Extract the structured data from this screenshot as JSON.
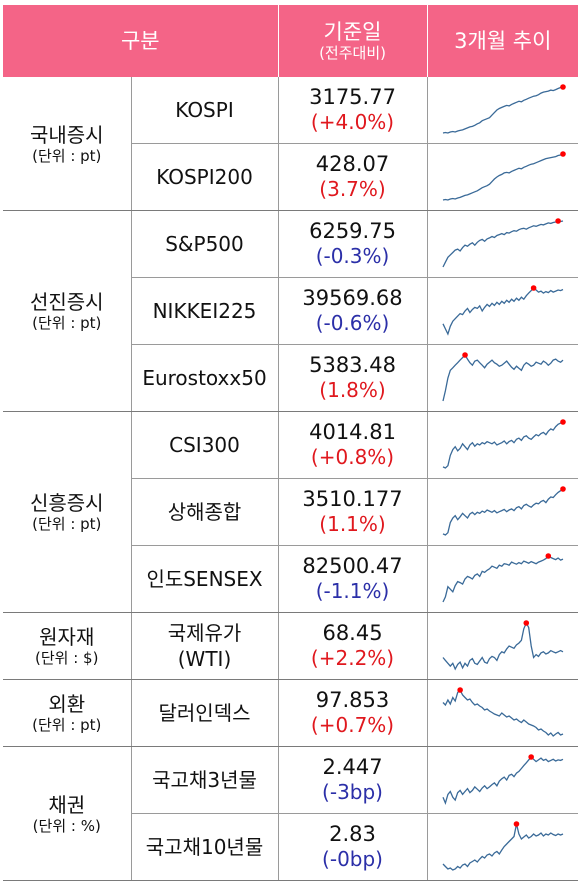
{
  "header": {
    "col_category": "구분",
    "col_base_main": "기준일",
    "col_base_sub": "(전주대비)",
    "col_trend": "3개월 추이"
  },
  "colors": {
    "up": "#e0181e",
    "down": "#2b2fa8",
    "header_bg": "#f46487",
    "spark_line": "#3a6a98",
    "spark_marker": "#ff0000"
  },
  "groups": [
    {
      "category": "국내증시",
      "unit": "(단위 : pt)",
      "rows": [
        {
          "name": "KOSPI",
          "value": "3175.77",
          "change": "(+4.0%)",
          "dir": "up"
        },
        {
          "name": "KOSPI200",
          "value": "428.07",
          "change": "(3.7%)",
          "dir": "up"
        }
      ]
    },
    {
      "category": "선진증시",
      "unit": "(단위 : pt)",
      "rows": [
        {
          "name": "S&P500",
          "value": "6259.75",
          "change": "(-0.3%)",
          "dir": "down"
        },
        {
          "name": "NIKKEI225",
          "value": "39569.68",
          "change": "(-0.6%)",
          "dir": "down"
        },
        {
          "name": "Eurostoxx50",
          "value": "5383.48",
          "change": "(1.8%)",
          "dir": "up"
        }
      ]
    },
    {
      "category": "신흥증시",
      "unit": "(단위 : pt)",
      "rows": [
        {
          "name": "CSI300",
          "value": "4014.81",
          "change": "(+0.8%)",
          "dir": "up"
        },
        {
          "name": "상해종합",
          "value": "3510.177",
          "change": "(1.1%)",
          "dir": "up"
        },
        {
          "name": "인도SENSEX",
          "value": "82500.47",
          "change": "(-1.1%)",
          "dir": "down"
        }
      ]
    },
    {
      "category": "원자재",
      "unit": "(단위 : $)",
      "rows": [
        {
          "name": "국제유가\n(WTI)",
          "value": "68.45",
          "change": "(+2.2%)",
          "dir": "up"
        }
      ]
    },
    {
      "category": "외환",
      "unit": "(단위 : pt)",
      "rows": [
        {
          "name": "달러인덱스",
          "value": "97.853",
          "change": "(+0.7%)",
          "dir": "up"
        }
      ]
    },
    {
      "category": "채권",
      "unit": "(단위 : %)",
      "rows": [
        {
          "name": "국고채3년물",
          "value": "2.447",
          "change": "(-3bp)",
          "dir": "down"
        },
        {
          "name": "국고채10년물",
          "value": "2.83",
          "change": "(-0bp)",
          "dir": "down"
        }
      ]
    }
  ],
  "sparklines": [
    {
      "id": "kospi",
      "values": [
        10,
        11,
        10,
        12,
        13,
        12,
        14,
        15,
        16,
        18,
        20,
        22,
        23,
        25,
        28,
        30,
        34,
        36,
        38,
        40,
        45,
        50,
        55,
        58,
        60,
        62,
        64,
        63,
        66,
        68,
        70,
        72,
        71,
        74,
        76,
        78,
        80,
        82,
        83,
        85,
        88,
        90,
        91,
        92,
        94,
        93,
        95,
        97,
        99,
        100
      ],
      "marker": "last"
    },
    {
      "id": "kospi200",
      "values": [
        10,
        11,
        10,
        12,
        13,
        12,
        14,
        15,
        17,
        19,
        20,
        22,
        24,
        26,
        28,
        31,
        34,
        36,
        38,
        41,
        46,
        51,
        55,
        58,
        60,
        63,
        64,
        63,
        66,
        68,
        70,
        72,
        71,
        74,
        76,
        78,
        80,
        81,
        83,
        85,
        87,
        89,
        91,
        92,
        93,
        94,
        95,
        97,
        98,
        100
      ],
      "marker": "last"
    },
    {
      "id": "sp500",
      "values": [
        5,
        15,
        25,
        30,
        35,
        40,
        42,
        38,
        45,
        50,
        48,
        52,
        55,
        50,
        56,
        60,
        62,
        58,
        63,
        65,
        68,
        66,
        70,
        72,
        74,
        72,
        76,
        75,
        78,
        80,
        79,
        82,
        84,
        85,
        83,
        86,
        88,
        90,
        89,
        91,
        93,
        92,
        94,
        96,
        95,
        97,
        98,
        100,
        99,
        100
      ],
      "marker": "max"
    },
    {
      "id": "nikkei",
      "values": [
        30,
        20,
        10,
        25,
        35,
        40,
        45,
        50,
        48,
        55,
        60,
        52,
        58,
        62,
        60,
        65,
        55,
        62,
        68,
        64,
        70,
        66,
        72,
        68,
        74,
        70,
        76,
        72,
        78,
        74,
        80,
        76,
        82,
        78,
        85,
        90,
        95,
        100,
        96,
        92,
        94,
        90,
        93,
        91,
        95,
        92,
        94,
        96,
        95,
        97
      ],
      "marker": "max"
    },
    {
      "id": "eurostoxx",
      "values": [
        10,
        30,
        55,
        70,
        75,
        80,
        85,
        90,
        95,
        100,
        92,
        85,
        80,
        88,
        90,
        85,
        80,
        75,
        82,
        86,
        90,
        85,
        82,
        78,
        80,
        84,
        88,
        82,
        76,
        72,
        78,
        74,
        70,
        80,
        85,
        82,
        78,
        80,
        86,
        84,
        82,
        88,
        85,
        80,
        84,
        90,
        92,
        88,
        86,
        90
      ],
      "marker": "max"
    },
    {
      "id": "csi300",
      "values": [
        20,
        18,
        22,
        40,
        50,
        55,
        48,
        52,
        60,
        55,
        50,
        58,
        62,
        56,
        60,
        58,
        62,
        60,
        64,
        62,
        60,
        63,
        58,
        60,
        62,
        65,
        60,
        64,
        66,
        62,
        68,
        70,
        66,
        72,
        74,
        70,
        68,
        72,
        76,
        74,
        78,
        80,
        76,
        82,
        86,
        84,
        90,
        94,
        96,
        98
      ],
      "marker": "max"
    },
    {
      "id": "shanghai",
      "values": [
        20,
        18,
        22,
        40,
        48,
        52,
        45,
        50,
        56,
        52,
        48,
        55,
        58,
        54,
        58,
        56,
        60,
        58,
        62,
        60,
        58,
        61,
        57,
        59,
        61,
        63,
        59,
        62,
        64,
        61,
        66,
        68,
        64,
        70,
        72,
        69,
        67,
        71,
        74,
        73,
        77,
        79,
        75,
        81,
        85,
        84,
        89,
        93,
        96,
        99
      ],
      "marker": "max"
    },
    {
      "id": "sensex",
      "values": [
        10,
        20,
        40,
        35,
        30,
        42,
        50,
        48,
        45,
        55,
        60,
        58,
        55,
        62,
        65,
        60,
        70,
        68,
        72,
        75,
        80,
        78,
        76,
        82,
        80,
        85,
        84,
        82,
        88,
        86,
        84,
        87,
        85,
        90,
        88,
        86,
        89,
        87,
        85,
        88,
        90,
        92,
        95,
        100,
        97,
        95,
        93,
        96,
        92,
        94
      ],
      "marker": "max"
    },
    {
      "id": "wti",
      "values": [
        40,
        35,
        30,
        25,
        30,
        20,
        28,
        32,
        22,
        30,
        25,
        35,
        38,
        30,
        28,
        34,
        40,
        32,
        30,
        38,
        42,
        40,
        35,
        45,
        50,
        48,
        55,
        60,
        58,
        56,
        62,
        65,
        70,
        90,
        100,
        92,
        60,
        40,
        45,
        42,
        48,
        50,
        46,
        48,
        52,
        50,
        48,
        50,
        52,
        50
      ],
      "marker": "max"
    },
    {
      "id": "dxy",
      "values": [
        75,
        70,
        80,
        72,
        85,
        78,
        95,
        100,
        90,
        85,
        80,
        82,
        75,
        70,
        72,
        68,
        65,
        60,
        62,
        58,
        55,
        52,
        50,
        48,
        54,
        50,
        46,
        48,
        44,
        40,
        42,
        38,
        35,
        40,
        36,
        32,
        30,
        28,
        25,
        20,
        22,
        18,
        15,
        10,
        14,
        8,
        12,
        15,
        10,
        12
      ],
      "marker": "max"
    },
    {
      "id": "ktb3",
      "values": [
        30,
        20,
        35,
        40,
        30,
        25,
        38,
        42,
        35,
        40,
        45,
        38,
        42,
        48,
        44,
        40,
        46,
        50,
        45,
        48,
        52,
        55,
        50,
        58,
        62,
        65,
        60,
        68,
        70,
        66,
        72,
        75,
        80,
        85,
        90,
        95,
        100,
        96,
        92,
        95,
        98,
        94,
        96,
        92,
        94,
        96,
        93,
        95,
        94,
        96
      ],
      "marker": "max"
    },
    {
      "id": "ktb10",
      "values": [
        20,
        15,
        10,
        12,
        8,
        10,
        15,
        12,
        18,
        20,
        15,
        22,
        25,
        28,
        24,
        30,
        35,
        32,
        38,
        40,
        36,
        42,
        45,
        40,
        48,
        55,
        60,
        65,
        70,
        75,
        100,
        80,
        70,
        74,
        78,
        72,
        75,
        80,
        76,
        78,
        82,
        76,
        80,
        78,
        82,
        79,
        77,
        80,
        78,
        80
      ],
      "marker": "max"
    }
  ]
}
